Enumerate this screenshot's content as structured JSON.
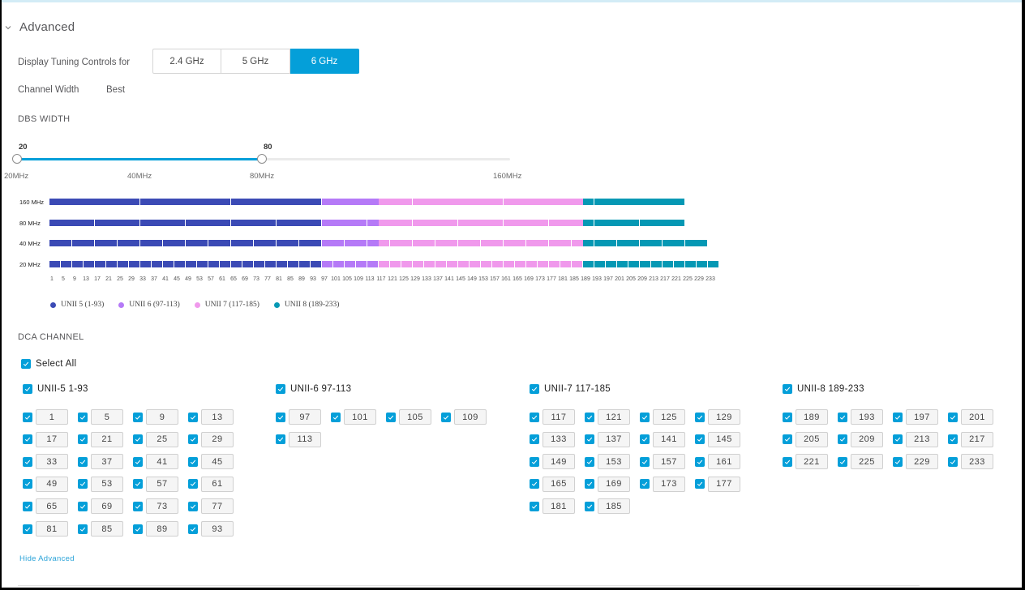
{
  "section": {
    "title": "Advanced",
    "icon": "chevron-down-icon"
  },
  "tuning": {
    "label": "Display Tuning Controls for",
    "bands": [
      {
        "label": "2.4 GHz",
        "active": false
      },
      {
        "label": "5 GHz",
        "active": false
      },
      {
        "label": "6 GHz",
        "active": true
      }
    ]
  },
  "channel_width": {
    "label": "Channel Width",
    "value": "Best"
  },
  "dbs_width": {
    "title": "DBS WIDTH",
    "min_value": "20",
    "max_value": "80",
    "ticks": [
      "20MHz",
      "40MHz",
      "80MHz",
      "160MHz"
    ]
  },
  "channel_chart": {
    "row_labels": [
      "160 MHz",
      "80 MHz",
      "40 MHz",
      "20 MHz"
    ],
    "channels": [
      1,
      5,
      9,
      13,
      17,
      21,
      25,
      29,
      33,
      37,
      41,
      45,
      49,
      53,
      57,
      61,
      65,
      69,
      73,
      77,
      81,
      85,
      89,
      93,
      97,
      101,
      105,
      109,
      113,
      117,
      121,
      125,
      129,
      133,
      137,
      141,
      145,
      149,
      153,
      157,
      161,
      165,
      169,
      173,
      177,
      181,
      185,
      189,
      193,
      197,
      201,
      205,
      209,
      213,
      217,
      221,
      225,
      229,
      233
    ],
    "legend": [
      {
        "label": "UNII 5 (1-93)",
        "color": "#3b4ab5"
      },
      {
        "label": "UNII 6 (97-113)",
        "color": "#b57af7"
      },
      {
        "label": "UNII 7 (117-185)",
        "color": "#f099ec"
      },
      {
        "label": "UNII 8 (189-233)",
        "color": "#0598b4"
      }
    ]
  },
  "dca": {
    "title": "DCA CHANNEL",
    "select_all": "Select All",
    "groups": [
      {
        "label": "UNII-5 1-93",
        "channels": [
          "1",
          "5",
          "9",
          "13",
          "17",
          "21",
          "25",
          "29",
          "33",
          "37",
          "41",
          "45",
          "49",
          "53",
          "57",
          "61",
          "65",
          "69",
          "73",
          "77",
          "81",
          "85",
          "89",
          "93"
        ]
      },
      {
        "label": "UNII-6 97-113",
        "channels": [
          "97",
          "101",
          "105",
          "109",
          "113"
        ]
      },
      {
        "label": "UNII-7 117-185",
        "channels": [
          "117",
          "121",
          "125",
          "129",
          "133",
          "137",
          "141",
          "145",
          "149",
          "153",
          "157",
          "161",
          "165",
          "169",
          "173",
          "177",
          "181",
          "185"
        ]
      },
      {
        "label": "UNII-8 189-233",
        "channels": [
          "189",
          "193",
          "197",
          "201",
          "205",
          "209",
          "213",
          "217",
          "221",
          "225",
          "229",
          "233"
        ]
      }
    ]
  },
  "footer": {
    "hide_advanced": "Hide Advanced"
  },
  "colors": {
    "accent": "#049fd9"
  }
}
